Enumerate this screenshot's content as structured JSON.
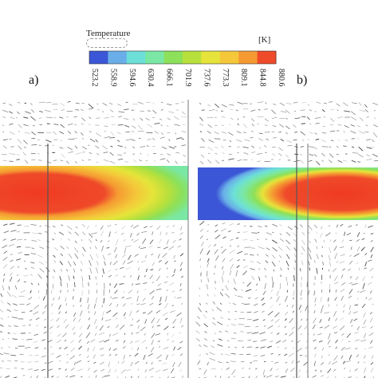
{
  "legend": {
    "title": "Temperature",
    "unit": "[K]",
    "ticks": [
      "523.2",
      "558.9",
      "594.6",
      "630.4",
      "666.1",
      "701.9",
      "737.6",
      "773.3",
      "809.1",
      "844.8",
      "880.6"
    ],
    "colors": [
      "#3b56d6",
      "#69aee8",
      "#6ddfd9",
      "#7ae8a4",
      "#8ce05a",
      "#b8e03c",
      "#e6e43a",
      "#f4c83a",
      "#f59a32",
      "#ef4a2a"
    ]
  },
  "panels": [
    {
      "label": "a)"
    },
    {
      "label": "b)"
    }
  ]
}
